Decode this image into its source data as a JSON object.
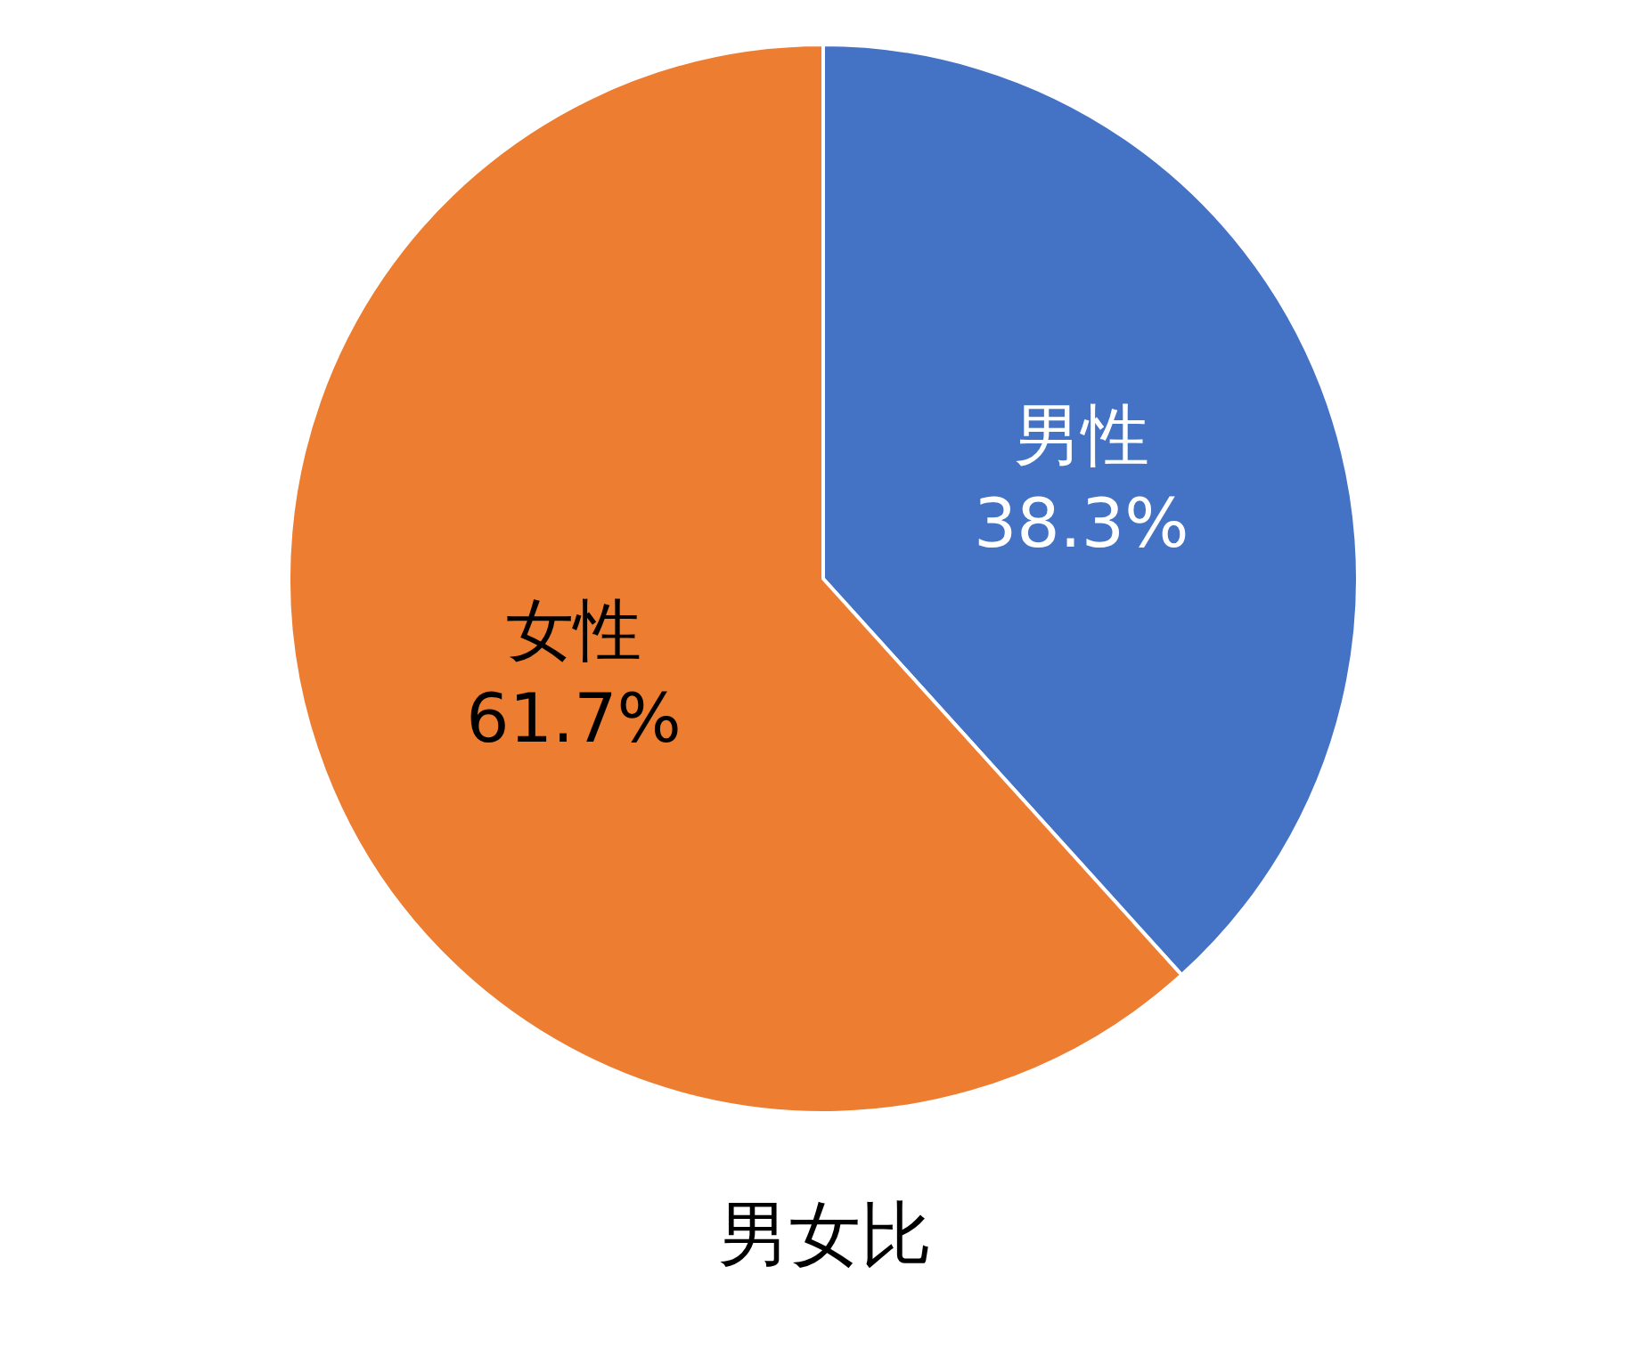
{
  "chart_data": {
    "type": "pie",
    "title": "男女比",
    "categories": [
      "男性",
      "女性"
    ],
    "values": [
      38.3,
      61.7
    ],
    "colors": [
      "#4472c4",
      "#ed7d31"
    ],
    "value_labels": [
      "38.3%",
      "61.7%"
    ],
    "legend": false
  }
}
